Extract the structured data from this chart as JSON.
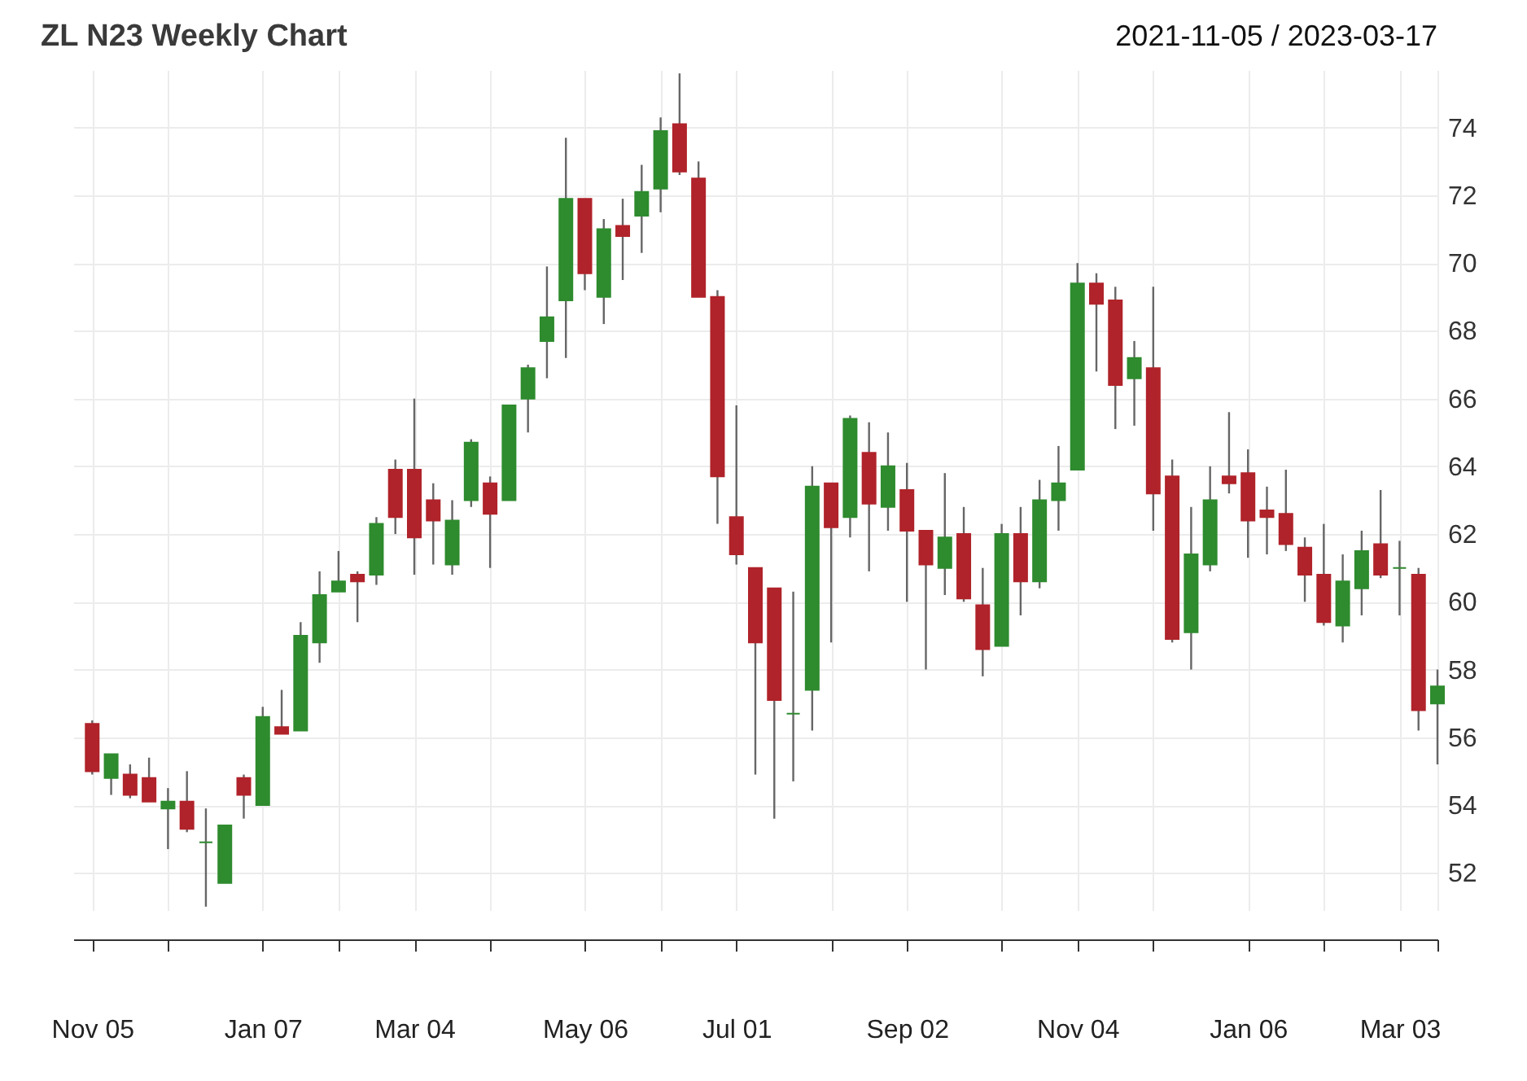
{
  "chart_data": {
    "type": "candlestick",
    "title": "ZL N23 Weekly Chart",
    "subtitle": "2021-11-05 / 2023-03-17",
    "x": [
      "2021-11-05",
      "2021-11-12",
      "2021-11-19",
      "2021-11-26",
      "2021-12-03",
      "2021-12-10",
      "2021-12-17",
      "2021-12-24",
      "2021-12-31",
      "2022-01-07",
      "2022-01-14",
      "2022-01-21",
      "2022-01-28",
      "2022-02-04",
      "2022-02-11",
      "2022-02-18",
      "2022-02-25",
      "2022-03-04",
      "2022-03-11",
      "2022-03-18",
      "2022-03-25",
      "2022-04-01",
      "2022-04-08",
      "2022-04-15",
      "2022-04-22",
      "2022-04-29",
      "2022-05-06",
      "2022-05-13",
      "2022-05-20",
      "2022-05-27",
      "2022-06-03",
      "2022-06-10",
      "2022-06-17",
      "2022-06-24",
      "2022-07-01",
      "2022-07-08",
      "2022-07-15",
      "2022-07-22",
      "2022-07-29",
      "2022-08-05",
      "2022-08-12",
      "2022-08-19",
      "2022-08-26",
      "2022-09-02",
      "2022-09-09",
      "2022-09-16",
      "2022-09-23",
      "2022-09-30",
      "2022-10-07",
      "2022-10-14",
      "2022-10-21",
      "2022-10-28",
      "2022-11-04",
      "2022-11-11",
      "2022-11-18",
      "2022-11-25",
      "2022-12-02",
      "2022-12-09",
      "2022-12-16",
      "2022-12-23",
      "2022-12-30",
      "2023-01-06",
      "2023-01-13",
      "2023-01-20",
      "2023-01-27",
      "2023-02-03",
      "2023-02-10",
      "2023-02-17",
      "2023-02-24",
      "2023-03-03",
      "2023-03-10",
      "2023-03-17"
    ],
    "ohlc": [
      [
        56.4,
        56.5,
        54.9,
        55.0
      ],
      [
        54.8,
        55.5,
        54.3,
        55.5
      ],
      [
        54.9,
        55.2,
        54.2,
        54.3
      ],
      [
        54.8,
        55.4,
        54.1,
        54.1
      ],
      [
        53.9,
        54.5,
        52.7,
        54.1
      ],
      [
        54.1,
        55.0,
        53.2,
        53.3
      ],
      [
        52.9,
        53.9,
        51.0,
        52.9
      ],
      [
        51.7,
        53.4,
        51.7,
        53.4
      ],
      [
        54.8,
        54.9,
        53.6,
        54.3
      ],
      [
        54.0,
        56.9,
        54.0,
        56.6
      ],
      [
        56.3,
        57.4,
        56.1,
        56.1
      ],
      [
        56.2,
        59.4,
        56.2,
        59.0
      ],
      [
        58.8,
        60.9,
        58.2,
        60.2
      ],
      [
        60.3,
        61.5,
        60.3,
        60.6
      ],
      [
        60.8,
        60.9,
        59.4,
        60.6
      ],
      [
        60.8,
        62.5,
        60.5,
        62.3
      ],
      [
        63.9,
        64.2,
        62.0,
        62.5
      ],
      [
        63.9,
        66.0,
        60.8,
        61.9
      ],
      [
        63.0,
        63.5,
        61.1,
        62.4
      ],
      [
        61.1,
        63.0,
        60.8,
        62.4
      ],
      [
        63.0,
        64.8,
        62.8,
        64.7
      ],
      [
        63.5,
        63.7,
        61.0,
        62.6
      ],
      [
        63.0,
        65.8,
        63.0,
        65.8
      ],
      [
        66.0,
        67.0,
        65.0,
        66.9
      ],
      [
        67.7,
        69.9,
        66.6,
        68.4
      ],
      [
        68.9,
        73.7,
        67.2,
        71.9
      ],
      [
        71.9,
        71.9,
        69.2,
        69.7
      ],
      [
        69.0,
        71.3,
        68.2,
        71.0
      ],
      [
        71.1,
        71.9,
        69.5,
        70.8
      ],
      [
        71.4,
        72.9,
        70.3,
        72.1
      ],
      [
        72.2,
        74.3,
        71.5,
        73.9
      ],
      [
        74.1,
        75.6,
        72.6,
        72.7
      ],
      [
        72.5,
        73.0,
        69.0,
        69.0
      ],
      [
        69.0,
        69.2,
        62.3,
        63.7
      ],
      [
        62.5,
        65.8,
        61.1,
        61.4
      ],
      [
        61.0,
        61.0,
        54.9,
        58.8
      ],
      [
        60.4,
        60.4,
        53.6,
        57.1
      ],
      [
        56.7,
        60.3,
        54.7,
        56.7
      ],
      [
        57.4,
        64.0,
        56.2,
        63.4
      ],
      [
        63.5,
        63.5,
        58.8,
        62.2
      ],
      [
        62.5,
        65.5,
        61.9,
        65.4
      ],
      [
        64.4,
        65.3,
        60.9,
        62.9
      ],
      [
        62.8,
        65.0,
        62.1,
        64.0
      ],
      [
        63.3,
        64.1,
        60.0,
        62.1
      ],
      [
        62.1,
        62.1,
        58.0,
        61.1
      ],
      [
        61.0,
        63.8,
        60.2,
        61.9
      ],
      [
        62.0,
        62.8,
        60.0,
        60.1
      ],
      [
        59.9,
        61.0,
        57.8,
        58.6
      ],
      [
        58.7,
        62.3,
        58.7,
        62.0
      ],
      [
        62.0,
        62.8,
        59.6,
        60.6
      ],
      [
        60.6,
        63.6,
        60.4,
        63.0
      ],
      [
        63.0,
        64.6,
        62.1,
        63.5
      ],
      [
        63.9,
        70.0,
        63.9,
        69.4
      ],
      [
        69.4,
        69.7,
        66.8,
        68.8
      ],
      [
        68.9,
        69.3,
        65.1,
        66.4
      ],
      [
        66.6,
        67.7,
        65.2,
        67.2
      ],
      [
        66.9,
        69.3,
        62.1,
        63.2
      ],
      [
        63.7,
        64.2,
        58.8,
        58.9
      ],
      [
        59.1,
        62.8,
        58.0,
        61.4
      ],
      [
        61.1,
        64.0,
        60.9,
        63.0
      ],
      [
        63.7,
        65.6,
        63.2,
        63.5
      ],
      [
        63.8,
        64.5,
        61.3,
        62.4
      ],
      [
        62.7,
        63.4,
        61.4,
        62.5
      ],
      [
        62.6,
        63.9,
        61.5,
        61.7
      ],
      [
        61.6,
        61.9,
        60.0,
        60.8
      ],
      [
        60.8,
        62.3,
        59.3,
        59.4
      ],
      [
        59.3,
        61.4,
        58.8,
        60.6
      ],
      [
        60.4,
        62.1,
        59.6,
        61.5
      ],
      [
        61.7,
        63.3,
        60.7,
        60.8
      ],
      [
        61.0,
        61.8,
        59.6,
        61.0
      ],
      [
        60.8,
        61.0,
        56.2,
        56.8
      ],
      [
        57.0,
        58.0,
        55.2,
        57.5
      ]
    ],
    "colors": [
      "#b0232a",
      "#2e8b2e",
      "#b0232a",
      "#b0232a",
      "#2e8b2e",
      "#b0232a",
      "#2e8b2e",
      "#2e8b2e",
      "#b0232a",
      "#2e8b2e",
      "#b0232a",
      "#2e8b2e",
      "#2e8b2e",
      "#2e8b2e",
      "#b0232a",
      "#2e8b2e",
      "#b0232a",
      "#b0232a",
      "#b0232a",
      "#2e8b2e",
      "#2e8b2e",
      "#b0232a",
      "#2e8b2e",
      "#2e8b2e",
      "#2e8b2e",
      "#2e8b2e",
      "#b0232a",
      "#2e8b2e",
      "#b0232a",
      "#2e8b2e",
      "#2e8b2e",
      "#b0232a",
      "#b0232a",
      "#b0232a",
      "#b0232a",
      "#b0232a",
      "#b0232a",
      "#2e8b2e",
      "#2e8b2e",
      "#b0232a",
      "#2e8b2e",
      "#b0232a",
      "#2e8b2e",
      "#b0232a",
      "#b0232a",
      "#2e8b2e",
      "#b0232a",
      "#b0232a",
      "#2e8b2e",
      "#b0232a",
      "#2e8b2e",
      "#2e8b2e",
      "#2e8b2e",
      "#b0232a",
      "#b0232a",
      "#2e8b2e",
      "#b0232a",
      "#b0232a",
      "#2e8b2e",
      "#2e8b2e",
      "#b0232a",
      "#b0232a",
      "#b0232a",
      "#b0232a",
      "#b0232a",
      "#b0232a",
      "#2e8b2e",
      "#2e8b2e",
      "#b0232a",
      "#2e8b2e",
      "#b0232a",
      "#2e8b2e"
    ],
    "xlim": [
      "2021-10-29",
      "2023-03-17"
    ],
    "xticks": [
      {
        "value": "2021-11-05",
        "label": "Nov 05"
      },
      {
        "value": "2021-12-03",
        "label": null
      },
      {
        "value": "2022-01-07",
        "label": "Jan 07"
      },
      {
        "value": "2022-02-04",
        "label": null
      },
      {
        "value": "2022-03-04",
        "label": "Mar 04"
      },
      {
        "value": "2022-04-01",
        "label": null
      },
      {
        "value": "2022-05-06",
        "label": "May 06"
      },
      {
        "value": "2022-06-03",
        "label": null
      },
      {
        "value": "2022-07-01",
        "label": "Jul 01"
      },
      {
        "value": "2022-08-05",
        "label": null
      },
      {
        "value": "2022-09-02",
        "label": "Sep 02"
      },
      {
        "value": "2022-10-07",
        "label": null
      },
      {
        "value": "2022-11-04",
        "label": "Nov 04"
      },
      {
        "value": "2022-12-02",
        "label": null
      },
      {
        "value": "2023-01-06",
        "label": "Jan 06"
      },
      {
        "value": "2023-02-03",
        "label": null
      },
      {
        "value": "2023-03-03",
        "label": "Mar 03"
      },
      {
        "value": "2023-03-17",
        "label": null
      }
    ],
    "ylim": [
      50.9,
      75.7
    ],
    "yticks": [
      52,
      54,
      56,
      58,
      60,
      62,
      64,
      66,
      68,
      70,
      72,
      74
    ],
    "grid": true
  }
}
